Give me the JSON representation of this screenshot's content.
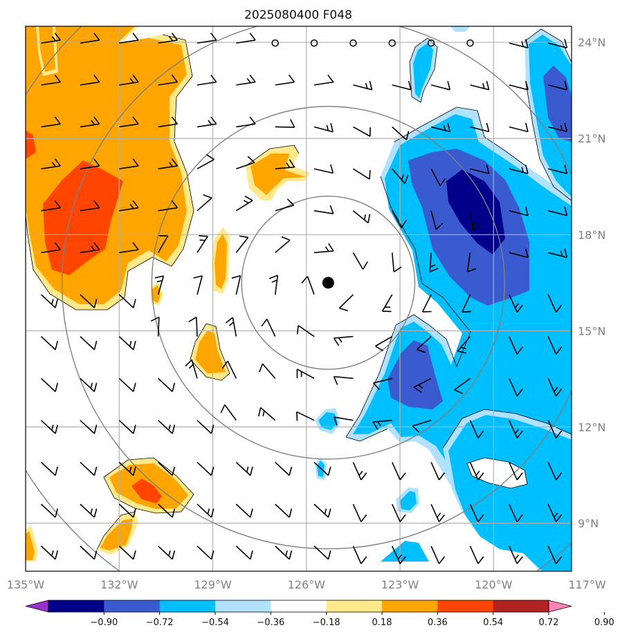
{
  "title": "2025080400 F048",
  "map": {
    "lon_range": [
      -135,
      -117.5
    ],
    "lat_range": [
      7.5,
      24.5
    ],
    "lon_ticks": [
      {
        "value": -135,
        "label": "135°W"
      },
      {
        "value": -132,
        "label": "132°W"
      },
      {
        "value": -129,
        "label": "129°W"
      },
      {
        "value": -126,
        "label": "126°W"
      },
      {
        "value": -123,
        "label": "123°W"
      },
      {
        "value": -120,
        "label": "120°W"
      },
      {
        "value": -117,
        "label": "117°W"
      }
    ],
    "lat_ticks": [
      {
        "value": 9,
        "label": "9°N"
      },
      {
        "value": 12,
        "label": "12°N"
      },
      {
        "value": 15,
        "label": "15°N"
      },
      {
        "value": 18,
        "label": "18°N"
      },
      {
        "value": 21,
        "label": "21°N"
      },
      {
        "value": 24,
        "label": "24°N"
      }
    ],
    "center": {
      "lon": -125.3,
      "lat": 16.5
    },
    "range_rings_deg": [
      2.7,
      5.5,
      8.3,
      11.1
    ],
    "colors": {
      "ring": "#808080",
      "grid": "#b0b0b0",
      "neg_090": "#8a2be2",
      "neg_072": "#00008b",
      "neg_054": "#3a5bd0",
      "neg_036": "#00bfff",
      "neg_018": "#b0e2ff",
      "pos_018": "#ffe98a",
      "pos_036": "#ffa500",
      "pos_054": "#ff4500",
      "pos_072": "#b22222",
      "pos_090": "#ff85b5"
    }
  },
  "colorbar": {
    "levels": [
      -0.9,
      -0.72,
      -0.54,
      -0.36,
      -0.18,
      0.18,
      0.36,
      0.54,
      0.72,
      0.9
    ],
    "labels": [
      "−0.90",
      "−0.72",
      "−0.54",
      "−0.36",
      "−0.18",
      "0.18",
      "0.36",
      "0.54",
      "0.72",
      "0.90"
    ],
    "colors": [
      "#9932cc",
      "#00008b",
      "#3a5bd0",
      "#00bfff",
      "#b0e2ff",
      "#ffffff",
      "#ffe98a",
      "#ffa500",
      "#ff4500",
      "#b22222",
      "#ff85b5"
    ]
  }
}
